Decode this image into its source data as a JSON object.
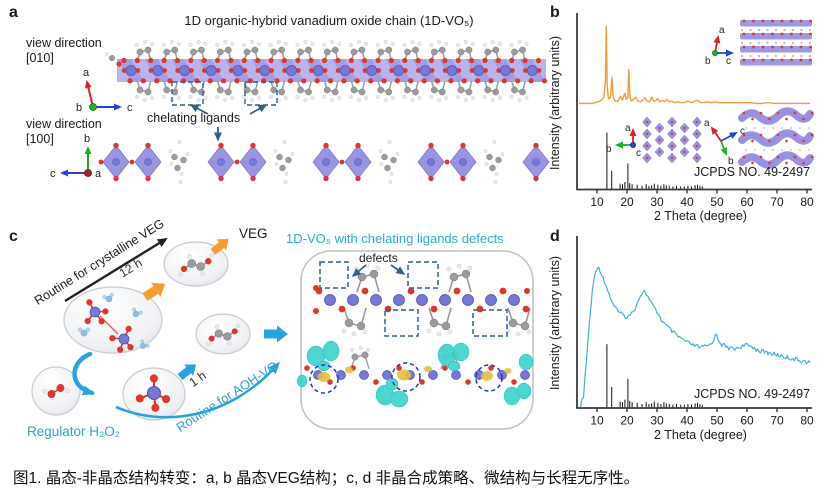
{
  "figure": {
    "caption": "图1. 晶态-非晶态结构转变：a, b 晶态VEG结构；c, d 非晶合成策略、微结构与长程无序性。",
    "crystal_axes": {
      "a": "a",
      "b": "b",
      "c": "c"
    },
    "panel_a": {
      "label": "a",
      "title": "1D organic-hybrid vanadium oxide chain (1D-VO₅)",
      "view_direction_1": "view direction",
      "view_axis_1": "[010]",
      "view_direction_2": "view direction",
      "view_axis_2": "[100]",
      "chelating_label": "chelating ligands"
    },
    "panel_b": {
      "label": "b",
      "ylabel": "Intensity (arbitrary units)",
      "xlabel": "2 Theta (degree)",
      "reference_label": "JCPDS NO. 49-2497"
    },
    "panel_c": {
      "label": "c",
      "route_crystalline": "Routine for crystalline VEG",
      "time_crystalline": "12 h",
      "product_crystalline": "VEG",
      "route_amorphous": "Routine for AOH-VO",
      "time_amorphous": "1 h",
      "regulator": "Regulator H₂O₂",
      "product_title": "1D-VO₅ with chelating ligands defects",
      "defects_label": "defects"
    },
    "panel_d": {
      "label": "d",
      "ylabel": "Intensity (arbitrary units)",
      "xlabel": "2 Theta (degree)",
      "reference_label": "JCPDS NO. 49-2497"
    }
  },
  "colors": {
    "crystalline_curve": "#F59B3C",
    "amorphous_curve": "#3FAFE8",
    "vanadium": "#7678D8",
    "polyhedra": "#8E86DF",
    "oxygen": "#E0352B",
    "carbon": "#9C9C9C",
    "hydrogen": "#EBEBEB",
    "water": "#8CC0EA",
    "cyan_isosurface": "#3ED3CE",
    "yellow_isosurface": "#E3C23C",
    "accent_cyan_text": "#29ABE2",
    "accent_blue_arrow": "#29A3E0",
    "accent_orange_arrow": "#F59E2D",
    "axis_a": "#E02020",
    "axis_b": "#1FAF1F",
    "axis_c": "#2244D6",
    "dashed_annotation": "#2F5F8F"
  },
  "chart_data": [
    {
      "id": "xrd_crystalline",
      "panel": "b",
      "type": "line",
      "title": "XRD of crystalline VEG (1D-VO5)",
      "xlabel": "2 Theta (degree)",
      "ylabel": "Intensity (arbitrary units)",
      "xlim": [
        4,
        82
      ],
      "ylim": [
        0,
        110
      ],
      "xticks": [
        10,
        20,
        30,
        40,
        50,
        60,
        70,
        80
      ],
      "grid": false,
      "curve_color": "#F59B3C",
      "noisy": false,
      "series": [
        {
          "name": "crystalline VEG",
          "points": [
            [
              4,
              2
            ],
            [
              6,
              2
            ],
            [
              8,
              2
            ],
            [
              9.5,
              3
            ],
            [
              10.5,
              4
            ],
            [
              11.5,
              6
            ],
            [
              12.3,
              10
            ],
            [
              12.8,
              30
            ],
            [
              13.1,
              100
            ],
            [
              13.4,
              25
            ],
            [
              13.8,
              8
            ],
            [
              14.5,
              10
            ],
            [
              15.0,
              35
            ],
            [
              15.4,
              10
            ],
            [
              16,
              5
            ],
            [
              17,
              5
            ],
            [
              17.9,
              11
            ],
            [
              18.4,
              6
            ],
            [
              19.3,
              15
            ],
            [
              19.8,
              7
            ],
            [
              20.3,
              9
            ],
            [
              20.6,
              45
            ],
            [
              21.0,
              10
            ],
            [
              21.5,
              5
            ],
            [
              22.2,
              7
            ],
            [
              23,
              10
            ],
            [
              23.6,
              5
            ],
            [
              24.5,
              4
            ],
            [
              25.2,
              6
            ],
            [
              26,
              9
            ],
            [
              26.6,
              5
            ],
            [
              27.5,
              4
            ],
            [
              28.3,
              10
            ],
            [
              28.8,
              5
            ],
            [
              29.5,
              5
            ],
            [
              30.2,
              8
            ],
            [
              31,
              4
            ],
            [
              31.8,
              6
            ],
            [
              32.5,
              4
            ],
            [
              33.3,
              7
            ],
            [
              34,
              4
            ],
            [
              34.8,
              5
            ],
            [
              36,
              3
            ],
            [
              37,
              4
            ],
            [
              38,
              3
            ],
            [
              39,
              3
            ],
            [
              40.3,
              5
            ],
            [
              41.5,
              3
            ],
            [
              42.7,
              5
            ],
            [
              43.5,
              6
            ],
            [
              44.5,
              3
            ],
            [
              45.5,
              3
            ],
            [
              46.5,
              4
            ],
            [
              48,
              3
            ],
            [
              49.5,
              4
            ],
            [
              51,
              3
            ],
            [
              53,
              3
            ],
            [
              55,
              3
            ],
            [
              57,
              3
            ],
            [
              59,
              3
            ],
            [
              61,
              3
            ],
            [
              63,
              2
            ],
            [
              65,
              2
            ],
            [
              67,
              3
            ],
            [
              69,
              2
            ],
            [
              71,
              2
            ],
            [
              73,
              2
            ],
            [
              75,
              2
            ],
            [
              77,
              2
            ],
            [
              79,
              2
            ],
            [
              81,
              2
            ]
          ]
        }
      ],
      "reference": {
        "label": "JCPDS NO. 49-2497",
        "color": "#111111",
        "peaks": [
          [
            13.3,
            100
          ],
          [
            14.9,
            32
          ],
          [
            17.7,
            9
          ],
          [
            18.5,
            8
          ],
          [
            19.3,
            12
          ],
          [
            20.3,
            45
          ],
          [
            20.9,
            10
          ],
          [
            21.7,
            8
          ],
          [
            23.4,
            7
          ],
          [
            25.0,
            5
          ],
          [
            26.4,
            8
          ],
          [
            27.3,
            5
          ],
          [
            28.2,
            6
          ],
          [
            29.1,
            9
          ],
          [
            30.3,
            7
          ],
          [
            31.3,
            5
          ],
          [
            32.3,
            8
          ],
          [
            33.1,
            6
          ],
          [
            34.1,
            5
          ],
          [
            35.3,
            4
          ],
          [
            36.5,
            5
          ],
          [
            37.9,
            4
          ],
          [
            39.1,
            4
          ],
          [
            40.3,
            5
          ],
          [
            41.5,
            4
          ],
          [
            42.7,
            6
          ],
          [
            43.5,
            7
          ],
          [
            44.3,
            5
          ],
          [
            45.1,
            4
          ]
        ]
      }
    },
    {
      "id": "xrd_amorphous",
      "panel": "d",
      "type": "line",
      "title": "XRD of amorphous AOH-VO",
      "xlabel": "2 Theta (degree)",
      "ylabel": "Intensity (arbitrary units)",
      "xlim": [
        4,
        82
      ],
      "ylim": [
        0,
        110
      ],
      "xticks": [
        10,
        20,
        30,
        40,
        50,
        60,
        70,
        80
      ],
      "grid": false,
      "curve_color": "#3FAFE8",
      "noisy": true,
      "series": [
        {
          "name": "amorphous AOH-VO",
          "points": [
            [
              4.5,
              2
            ],
            [
              5.5,
              10
            ],
            [
              6.5,
              35
            ],
            [
              7.5,
              62
            ],
            [
              8.5,
              84
            ],
            [
              9.5,
              97
            ],
            [
              10.2,
              100
            ],
            [
              11,
              98
            ],
            [
              12,
              93
            ],
            [
              13,
              87
            ],
            [
              14,
              81
            ],
            [
              15,
              76
            ],
            [
              16,
              72
            ],
            [
              17,
              69
            ],
            [
              18,
              67
            ],
            [
              19,
              66
            ],
            [
              20,
              65
            ],
            [
              21,
              66
            ],
            [
              22,
              69
            ],
            [
              23,
              73
            ],
            [
              24,
              78
            ],
            [
              25,
              82
            ],
            [
              25.8,
              83
            ],
            [
              26.5,
              81
            ],
            [
              27.5,
              77
            ],
            [
              28.5,
              73
            ],
            [
              29.5,
              70
            ],
            [
              30.5,
              67
            ],
            [
              31.5,
              63
            ],
            [
              32.5,
              60
            ],
            [
              33.5,
              58
            ],
            [
              34.5,
              56
            ],
            [
              35.5,
              54
            ],
            [
              36.5,
              52
            ],
            [
              38,
              50
            ],
            [
              39.5,
              48
            ],
            [
              41,
              46
            ],
            [
              42.5,
              45
            ],
            [
              44,
              44
            ],
            [
              45.5,
              44
            ],
            [
              47,
              45
            ],
            [
              48,
              46
            ],
            [
              49,
              50
            ],
            [
              49.8,
              53
            ],
            [
              50.6,
              49
            ],
            [
              51.6,
              46
            ],
            [
              53,
              44
            ],
            [
              54.5,
              43
            ],
            [
              56,
              43
            ],
            [
              57.5,
              44
            ],
            [
              59,
              45
            ],
            [
              60.5,
              45
            ],
            [
              62,
              44
            ],
            [
              63.5,
              42
            ],
            [
              65,
              41
            ],
            [
              67,
              40
            ],
            [
              69,
              39
            ],
            [
              71,
              38
            ],
            [
              73,
              37
            ],
            [
              75,
              36
            ],
            [
              77,
              35
            ],
            [
              79,
              34
            ],
            [
              81,
              33
            ]
          ]
        }
      ],
      "reference": {
        "label": "JCPDS NO. 49-2497",
        "color": "#111111",
        "peaks": [
          [
            13.3,
            100
          ],
          [
            14.9,
            32
          ],
          [
            17.7,
            9
          ],
          [
            18.5,
            8
          ],
          [
            19.3,
            12
          ],
          [
            20.3,
            45
          ],
          [
            20.9,
            10
          ],
          [
            21.7,
            8
          ],
          [
            23.4,
            7
          ],
          [
            25.0,
            5
          ],
          [
            26.4,
            8
          ],
          [
            27.3,
            5
          ],
          [
            28.2,
            6
          ],
          [
            29.1,
            9
          ],
          [
            30.3,
            7
          ],
          [
            31.3,
            5
          ],
          [
            32.3,
            8
          ],
          [
            33.1,
            6
          ],
          [
            34.1,
            5
          ],
          [
            35.3,
            4
          ],
          [
            36.5,
            5
          ],
          [
            37.9,
            4
          ],
          [
            39.1,
            4
          ],
          [
            40.3,
            5
          ],
          [
            41.5,
            4
          ],
          [
            42.7,
            6
          ],
          [
            43.5,
            7
          ],
          [
            44.3,
            5
          ],
          [
            45.1,
            4
          ]
        ]
      }
    }
  ]
}
